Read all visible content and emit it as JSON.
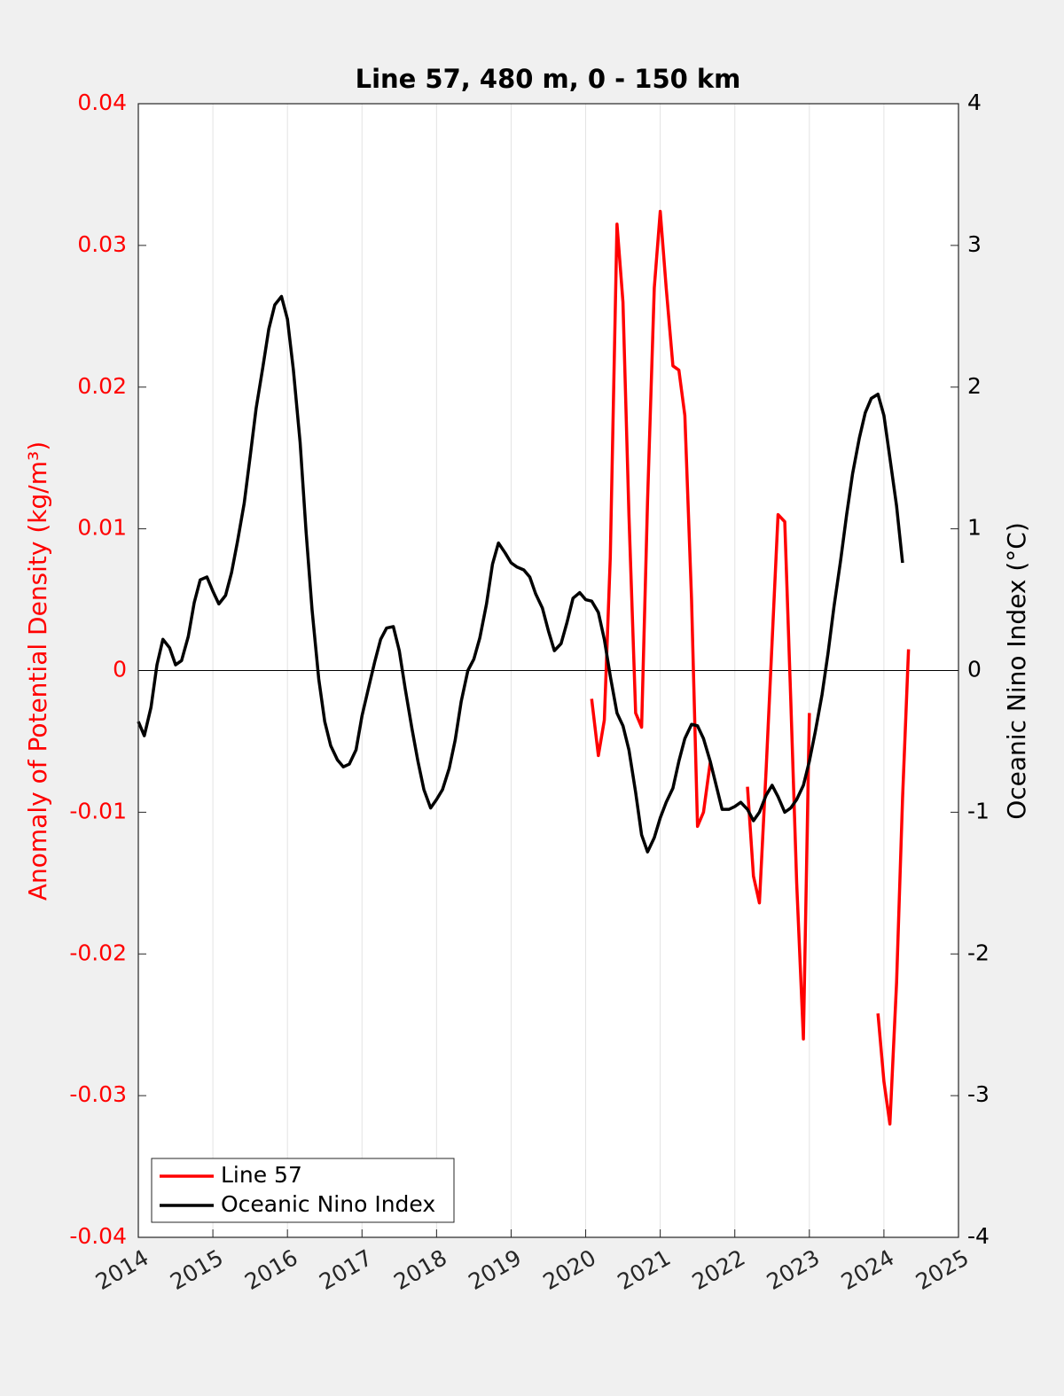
{
  "chart_data": {
    "type": "line",
    "title": "Line 57, 480 m, 0 - 150 km",
    "y_label": "Anomaly of Potential Density (kg/m³)",
    "y2_label": "Oceanic Nino Index (°C)",
    "x": [
      2014,
      2014.08,
      2014.17,
      2014.25,
      2014.33,
      2014.42,
      2014.5,
      2014.58,
      2014.67,
      2014.75,
      2014.83,
      2014.92,
      2015,
      2015.08,
      2015.17,
      2015.25,
      2015.33,
      2015.42,
      2015.5,
      2015.58,
      2015.67,
      2015.75,
      2015.83,
      2015.92,
      2016,
      2016.08,
      2016.17,
      2016.25,
      2016.33,
      2016.42,
      2016.5,
      2016.58,
      2016.67,
      2016.75,
      2016.83,
      2016.92,
      2017,
      2017.08,
      2017.17,
      2017.25,
      2017.33,
      2017.42,
      2017.5,
      2017.58,
      2017.67,
      2017.75,
      2017.83,
      2017.92,
      2018,
      2018.08,
      2018.17,
      2018.25,
      2018.33,
      2018.42,
      2018.5,
      2018.58,
      2018.67,
      2018.75,
      2018.83,
      2018.92,
      2019,
      2019.08,
      2019.17,
      2019.25,
      2019.33,
      2019.42,
      2019.5,
      2019.58,
      2019.67,
      2019.75,
      2019.83,
      2019.92,
      2020,
      2020.08,
      2020.17,
      2020.25,
      2020.33,
      2020.42,
      2020.5,
      2020.58,
      2020.67,
      2020.75,
      2020.83,
      2020.92,
      2021,
      2021.08,
      2021.17,
      2021.25,
      2021.33,
      2021.42,
      2021.5,
      2021.58,
      2021.67,
      2021.75,
      2021.83,
      2021.92,
      2022,
      2022.08,
      2022.17,
      2022.25,
      2022.33,
      2022.42,
      2022.5,
      2022.58,
      2022.67,
      2022.75,
      2022.83,
      2022.92,
      2023,
      2023.08,
      2023.17,
      2023.25,
      2023.33,
      2023.42,
      2023.5,
      2023.58,
      2023.67,
      2023.75,
      2023.83,
      2023.92,
      2024,
      2024.08,
      2024.17,
      2024.25,
      2024.33
    ],
    "series": [
      {
        "name": "Line 57",
        "color": "#ff0000",
        "axis": "y",
        "values": [
          null,
          null,
          null,
          null,
          null,
          null,
          null,
          null,
          null,
          null,
          null,
          null,
          null,
          null,
          null,
          null,
          null,
          null,
          null,
          null,
          null,
          null,
          null,
          null,
          null,
          null,
          null,
          null,
          null,
          null,
          null,
          null,
          null,
          null,
          null,
          null,
          null,
          null,
          null,
          null,
          null,
          null,
          null,
          null,
          null,
          null,
          null,
          null,
          null,
          null,
          null,
          null,
          null,
          null,
          null,
          null,
          null,
          null,
          null,
          null,
          null,
          null,
          null,
          null,
          null,
          null,
          null,
          null,
          null,
          null,
          null,
          null,
          null,
          -0.002,
          -0.006,
          -0.0035,
          0.008,
          0.0315,
          0.026,
          0.011,
          -0.003,
          -0.004,
          0.012,
          0.027,
          0.0324,
          0.027,
          0.0215,
          0.0212,
          0.018,
          0.005,
          -0.011,
          -0.01,
          -0.0065,
          null,
          null,
          null,
          null,
          null,
          -0.0082,
          -0.0145,
          -0.0164,
          -0.007,
          0.002,
          0.011,
          0.0105,
          -0.002,
          -0.015,
          -0.026,
          -0.003,
          null,
          null,
          null,
          null,
          null,
          null,
          null,
          null,
          null,
          null,
          -0.0242,
          -0.029,
          -0.032,
          -0.022,
          -0.009,
          0.0015
        ]
      },
      {
        "name": "Oceanic Nino Index",
        "color": "#000000",
        "axis": "y2",
        "values": [
          -0.36,
          -0.46,
          -0.26,
          0.04,
          0.22,
          0.16,
          0.04,
          0.07,
          0.24,
          0.48,
          0.64,
          0.66,
          0.56,
          0.47,
          0.53,
          0.69,
          0.91,
          1.18,
          1.51,
          1.85,
          2.14,
          2.41,
          2.58,
          2.64,
          2.48,
          2.12,
          1.61,
          0.98,
          0.43,
          -0.06,
          -0.36,
          -0.53,
          -0.63,
          -0.68,
          -0.66,
          -0.56,
          -0.32,
          -0.14,
          0.06,
          0.22,
          0.3,
          0.31,
          0.14,
          -0.13,
          -0.41,
          -0.64,
          -0.84,
          -0.97,
          -0.91,
          -0.84,
          -0.69,
          -0.49,
          -0.22,
          0.0,
          0.08,
          0.23,
          0.47,
          0.75,
          0.9,
          0.83,
          0.76,
          0.73,
          0.71,
          0.66,
          0.54,
          0.44,
          0.28,
          0.14,
          0.19,
          0.34,
          0.51,
          0.55,
          0.5,
          0.49,
          0.41,
          0.22,
          -0.04,
          -0.3,
          -0.39,
          -0.56,
          -0.86,
          -1.16,
          -1.28,
          -1.18,
          -1.04,
          -0.93,
          -0.83,
          -0.64,
          -0.48,
          -0.38,
          -0.39,
          -0.48,
          -0.64,
          -0.81,
          -0.98,
          -0.98,
          -0.96,
          -0.93,
          -0.98,
          -1.06,
          -1.0,
          -0.88,
          -0.81,
          -0.89,
          -1.0,
          -0.97,
          -0.91,
          -0.81,
          -0.64,
          -0.43,
          -0.17,
          0.12,
          0.45,
          0.78,
          1.1,
          1.39,
          1.64,
          1.82,
          1.92,
          1.95,
          1.8,
          1.5,
          1.16,
          0.76,
          null
        ]
      }
    ],
    "xlim": [
      2014,
      2025
    ],
    "xticks": [
      2014,
      2015,
      2016,
      2017,
      2018,
      2019,
      2020,
      2021,
      2022,
      2023,
      2024,
      2025
    ],
    "ylim": [
      -0.04,
      0.04
    ],
    "yticks": [
      -0.04,
      -0.03,
      -0.02,
      -0.01,
      0,
      0.01,
      0.02,
      0.03,
      0.04
    ],
    "y2lim": [
      -4,
      4
    ],
    "y2ticks": [
      -4,
      -3,
      -2,
      -1,
      0,
      1,
      2,
      3,
      4
    ],
    "y_label_color": "#ff0000",
    "grid": "x",
    "zero_line": true,
    "legend": "lower left"
  }
}
